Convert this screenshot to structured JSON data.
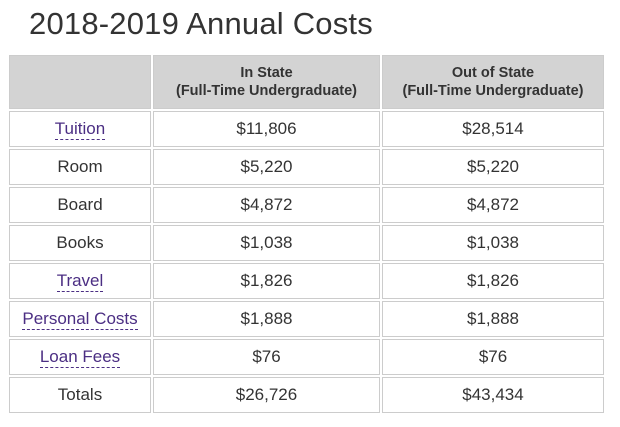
{
  "title": "2018-2019 Annual Costs",
  "headers": {
    "in_state_line1": "In State",
    "in_state_line2": "(Full-Time Undergraduate)",
    "out_state_line1": "Out of State",
    "out_state_line2": "(Full-Time Undergraduate)"
  },
  "rows": [
    {
      "label": "Tuition",
      "in_state": "$11,806",
      "out_state": "$28,514"
    },
    {
      "label": "Room",
      "in_state": "$5,220",
      "out_state": "$5,220"
    },
    {
      "label": "Board",
      "in_state": "$4,872",
      "out_state": "$4,872"
    },
    {
      "label": "Books",
      "in_state": "$1,038",
      "out_state": "$1,038"
    },
    {
      "label": "Travel",
      "in_state": "$1,826",
      "out_state": "$1,826"
    },
    {
      "label": "Personal Costs",
      "in_state": "$1,888",
      "out_state": "$1,888"
    },
    {
      "label": "Loan Fees",
      "in_state": "$76",
      "out_state": "$76"
    },
    {
      "label": "Totals",
      "in_state": "$26,726",
      "out_state": "$43,434"
    }
  ],
  "colors": {
    "link": "#4b2e83",
    "header_bg": "#d3d3d3",
    "border": "#cccccc"
  }
}
